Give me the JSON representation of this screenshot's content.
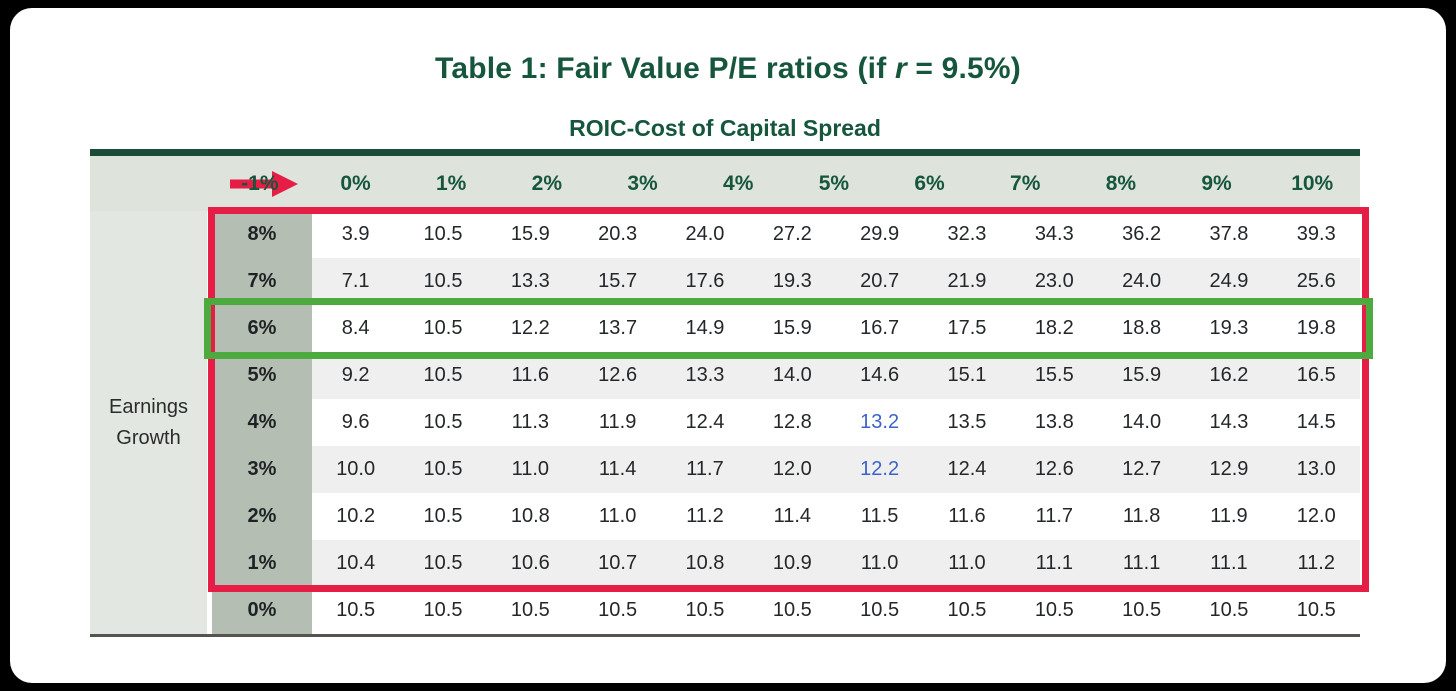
{
  "page": {
    "title_part1": "Table 1: Fair Value P/E ratios (if ",
    "title_italic": "r",
    "title_part2": " = 9.5%)",
    "column_axis_title": "ROIC-Cost of Capital Spread",
    "row_axis_label_line1": "Earnings",
    "row_axis_label_line2": "Growth"
  },
  "chart_data": {
    "type": "table",
    "title": "Table 1: Fair Value P/E ratios (if r = 9.5%)",
    "column_group_label": "ROIC-Cost of Capital Spread",
    "row_group_label": "Earnings Growth",
    "columns": [
      "-1%",
      "0%",
      "1%",
      "2%",
      "3%",
      "4%",
      "5%",
      "6%",
      "7%",
      "8%",
      "9%",
      "10%"
    ],
    "rows": [
      {
        "label": "8%",
        "values": [
          "3.9",
          "10.5",
          "15.9",
          "20.3",
          "24.0",
          "27.2",
          "29.9",
          "32.3",
          "34.3",
          "36.2",
          "37.8",
          "39.3"
        ]
      },
      {
        "label": "7%",
        "values": [
          "7.1",
          "10.5",
          "13.3",
          "15.7",
          "17.6",
          "19.3",
          "20.7",
          "21.9",
          "23.0",
          "24.0",
          "24.9",
          "25.6"
        ]
      },
      {
        "label": "6%",
        "values": [
          "8.4",
          "10.5",
          "12.2",
          "13.7",
          "14.9",
          "15.9",
          "16.7",
          "17.5",
          "18.2",
          "18.8",
          "19.3",
          "19.8"
        ]
      },
      {
        "label": "5%",
        "values": [
          "9.2",
          "10.5",
          "11.6",
          "12.6",
          "13.3",
          "14.0",
          "14.6",
          "15.1",
          "15.5",
          "15.9",
          "16.2",
          "16.5"
        ]
      },
      {
        "label": "4%",
        "values": [
          "9.6",
          "10.5",
          "11.3",
          "11.9",
          "12.4",
          "12.8",
          "13.2",
          "13.5",
          "13.8",
          "14.0",
          "14.3",
          "14.5"
        ]
      },
      {
        "label": "3%",
        "values": [
          "10.0",
          "10.5",
          "11.0",
          "11.4",
          "11.7",
          "12.0",
          "12.2",
          "12.4",
          "12.6",
          "12.7",
          "12.9",
          "13.0"
        ]
      },
      {
        "label": "2%",
        "values": [
          "10.2",
          "10.5",
          "10.8",
          "11.0",
          "11.2",
          "11.4",
          "11.5",
          "11.6",
          "11.7",
          "11.8",
          "11.9",
          "12.0"
        ]
      },
      {
        "label": "1%",
        "values": [
          "10.4",
          "10.5",
          "10.6",
          "10.7",
          "10.8",
          "10.9",
          "11.0",
          "11.0",
          "11.1",
          "11.1",
          "11.1",
          "11.2"
        ]
      },
      {
        "label": "0%",
        "values": [
          "10.5",
          "10.5",
          "10.5",
          "10.5",
          "10.5",
          "10.5",
          "10.5",
          "10.5",
          "10.5",
          "10.5",
          "10.5",
          "10.5"
        ]
      }
    ],
    "blue_value_cells": [
      [
        4,
        6
      ],
      [
        5,
        6
      ]
    ],
    "annotations": {
      "red_box": "thick red rectangle surrounding rows 8% through 1%",
      "green_box": "thick green rectangle surrounding row 6%",
      "arrow": "red arrow in header pointing right toward spread columns"
    },
    "colors": {
      "title_green": "#15563D",
      "rule_green": "#1C4C38",
      "header_row_bg": "#DEE3DC",
      "row_label_bg": "#B5BEB3",
      "side_panel_bg": "#E3E7E1",
      "stripe_bg": "#EFEFEF",
      "red_box": "#E61E46",
      "green_box": "#4CAA3E",
      "blue_value": "#3C63C9"
    },
    "layout": {
      "stripes": "alternating white / light gray rows",
      "grid": "off"
    }
  }
}
